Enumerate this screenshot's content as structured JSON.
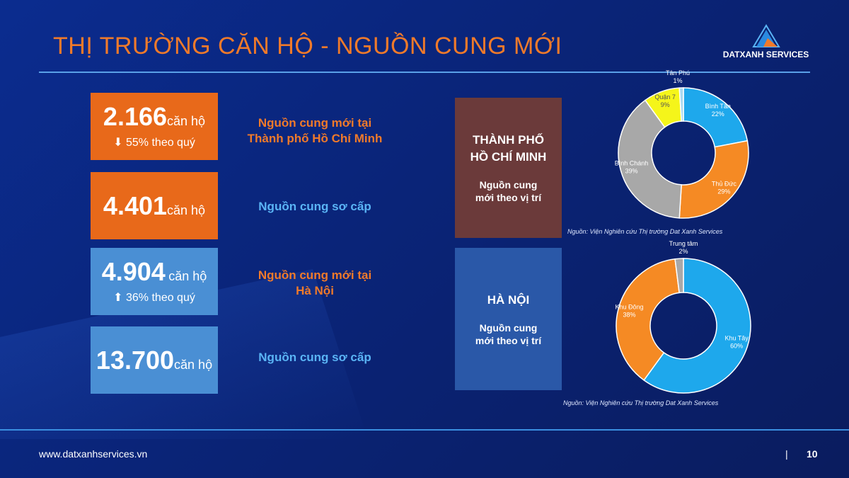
{
  "title": "THỊ TRƯỜNG CĂN HỘ - NGUỒN CUNG MỚI",
  "logo_text": "DATXANH SERVICES",
  "stats": [
    {
      "value": "2.166",
      "unit": "căn hộ",
      "change": "55% theo quý",
      "direction": "down",
      "desc": [
        "Nguồn cung mới tại",
        "Thành phố Hồ Chí Minh"
      ],
      "desc_color": "#f07a2a"
    },
    {
      "value": "4.401",
      "unit": "căn hộ",
      "desc": [
        "Nguồn cung sơ cấp"
      ],
      "desc_color": "#5ab4f5"
    },
    {
      "value": "4.904",
      "unit": "căn hộ",
      "change": "36% theo quý",
      "direction": "up",
      "desc": [
        "Nguồn cung mới tại",
        "Hà Nội"
      ],
      "desc_color": "#f07a2a"
    },
    {
      "value": "13.700",
      "unit": "căn hộ",
      "desc": [
        "Nguồn cung sơ cấp"
      ],
      "desc_color": "#5ab4f5"
    }
  ],
  "panels": [
    {
      "title1": "THÀNH PHỐ",
      "title2": "HỒ CHÍ MINH",
      "sub1": "Nguồn cung",
      "sub2": "mới theo vị trí"
    },
    {
      "title1": "HÀ NỘI",
      "sub1": "Nguồn cung",
      "sub2": "mới theo vị trí"
    }
  ],
  "chart_data": [
    {
      "type": "pie",
      "variant": "donut",
      "source": "Nguồn: Viện Nghiên cứu Thị trường Dat Xanh Services",
      "slices": [
        {
          "label": "Bình Tân",
          "value": 22,
          "color": "#1ea8ec"
        },
        {
          "label": "Thủ Đức",
          "value": 29,
          "color": "#f58a24"
        },
        {
          "label": "Bình Chánh",
          "value": 39,
          "color": "#a8a8a8"
        },
        {
          "label": "Quận 7",
          "value": 9,
          "color": "#f5f51a"
        },
        {
          "label": "Tân Phú",
          "value": 1,
          "color": "#a8d8f0"
        }
      ]
    },
    {
      "type": "pie",
      "variant": "donut",
      "source": "Nguồn: Viện Nghiên cứu Thị trường Dat Xanh Services",
      "slices": [
        {
          "label": "Khu Tây",
          "value": 60,
          "color": "#1ea8ec"
        },
        {
          "label": "Khu Đông",
          "value": 38,
          "color": "#f58a24"
        },
        {
          "label": "Trung tâm",
          "value": 2,
          "color": "#a8a8a8"
        }
      ]
    }
  ],
  "footer": {
    "website": "www.datxanhservices.vn",
    "separator": "|",
    "page": "10"
  }
}
